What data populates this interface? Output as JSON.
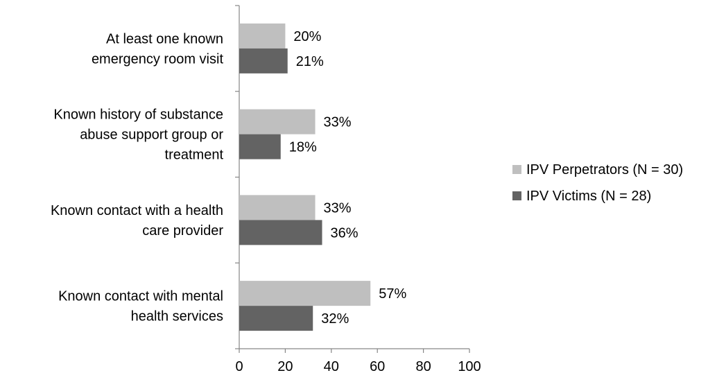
{
  "chart_data": {
    "type": "bar",
    "orientation": "horizontal",
    "categories": [
      [
        "At least one known",
        "emergency room visit"
      ],
      [
        "Known history of substance",
        "abuse support group or",
        "treatment"
      ],
      [
        "Known contact with a health",
        "care provider"
      ],
      [
        "Known contact with mental",
        "health services"
      ]
    ],
    "series": [
      {
        "name": "IPV Perpetrators (N = 30)",
        "color": "#bfbfbf",
        "values": [
          20,
          33,
          33,
          57
        ],
        "labels": [
          "20%",
          "33%",
          "33%",
          "57%"
        ]
      },
      {
        "name": "IPV Victims (N = 28)",
        "color": "#636363",
        "values": [
          21,
          18,
          36,
          32
        ],
        "labels": [
          "21%",
          "18%",
          "36%",
          "32%"
        ]
      }
    ],
    "xlim": [
      0,
      100
    ],
    "xticks": [
      0,
      20,
      40,
      60,
      80,
      100
    ],
    "xtick_labels": [
      "0",
      "20",
      "40",
      "60",
      "80",
      "100"
    ],
    "title": "",
    "xlabel": "",
    "ylabel": "",
    "grid": false,
    "legend_position": "right"
  }
}
